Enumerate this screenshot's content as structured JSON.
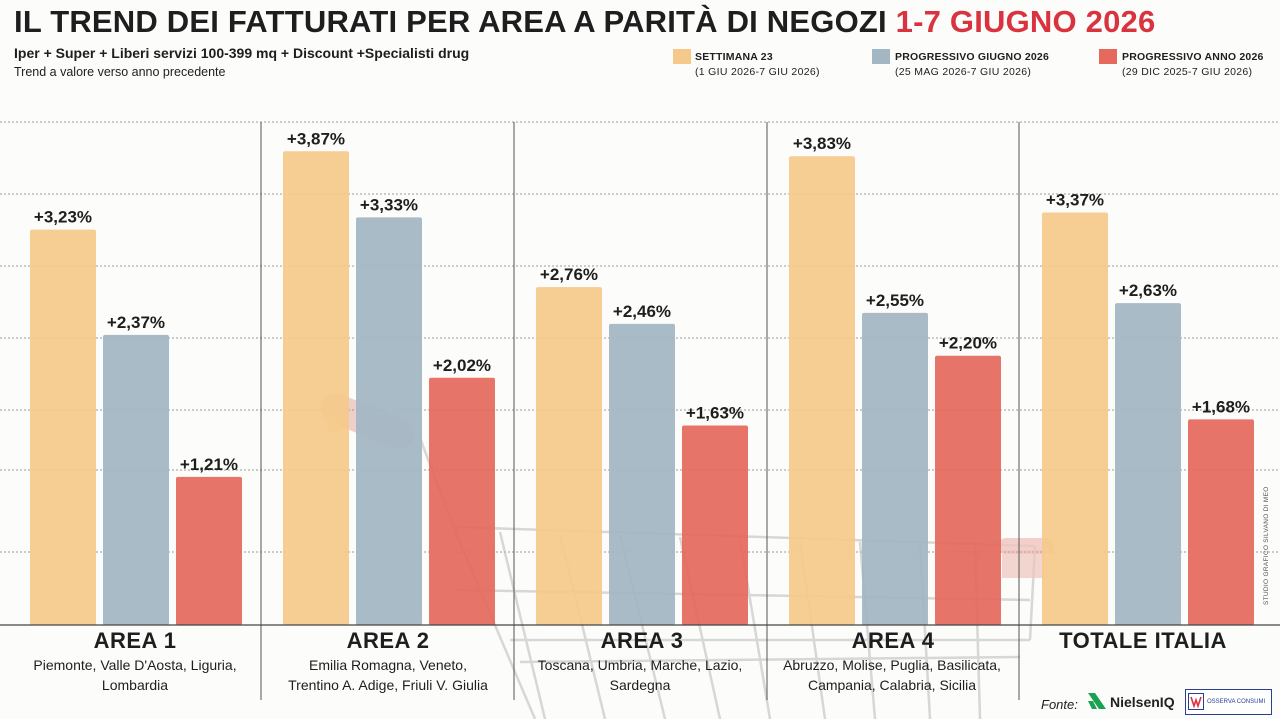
{
  "header": {
    "title": "IL TREND DEI FATTURATI PER AREA A PARITÀ DI NEGOZI",
    "title_highlight": "1-7 GIUGNO 2026",
    "subtitle": "Iper + Super + Liberi servizi 100-399 mq + Discount +Specialisti drug",
    "subtitle2": "Trend a valore verso anno precedente"
  },
  "legend": [
    {
      "name": "SETTIMANA 23",
      "range": "(1 GIU 2026-7 GIU 2026)",
      "color": "#f5c98a"
    },
    {
      "name": "PROGRESSIVO GIUGNO 2026",
      "range": "(25 MAG 2026-7 GIU 2026)",
      "color": "#a3b6c3"
    },
    {
      "name": "PROGRESSIVO ANNO 2026",
      "range": "(29 DIC 2025-7 GIU 2026)",
      "color": "#e5695c"
    }
  ],
  "areas": [
    {
      "title": "AREA 1",
      "regions": [
        "Piemonte, Valle D'Aosta, Liguria,",
        "Lombardia"
      ]
    },
    {
      "title": "AREA 2",
      "regions": [
        "Emilia Romagna, Veneto,",
        "Trentino A. Adige, Friuli V. Giulia"
      ]
    },
    {
      "title": "AREA 3",
      "regions": [
        "Toscana, Umbria, Marche, Lazio,",
        "Sardegna"
      ]
    },
    {
      "title": "AREA 4",
      "regions": [
        "Abruzzo, Molise, Puglia, Basilicata,",
        "Campania, Calabria, Sicilia"
      ]
    },
    {
      "title": "TOTALE ITALIA",
      "regions": []
    }
  ],
  "chart_data": {
    "type": "bar",
    "categories": [
      "AREA 1",
      "AREA 2",
      "AREA 3",
      "AREA 4",
      "TOTALE ITALIA"
    ],
    "series": [
      {
        "name": "SETTIMANA 23",
        "values": [
          3.23,
          3.87,
          2.76,
          3.83,
          3.37
        ],
        "labels": [
          "+3,23%",
          "+3,87%",
          "+2,76%",
          "+3,83%",
          "+3,37%"
        ],
        "color": "#f5c98a"
      },
      {
        "name": "PROGRESSIVO GIUGNO 2026",
        "values": [
          2.37,
          3.33,
          2.46,
          2.55,
          2.63
        ],
        "labels": [
          "+2,37%",
          "+3,33%",
          "+2,46%",
          "+2,55%",
          "+2,63%"
        ],
        "color": "#a3b6c3"
      },
      {
        "name": "PROGRESSIVO ANNO 2026",
        "values": [
          1.21,
          2.02,
          1.63,
          2.2,
          1.68
        ],
        "labels": [
          "+1,21%",
          "+2,02%",
          "+1,63%",
          "+2,20%",
          "+1,68%"
        ],
        "color": "#e5695c"
      }
    ],
    "ylim": [
      0,
      4.2
    ],
    "grid": true,
    "legend_position": "top-right"
  },
  "footer": {
    "source_label": "Fonte:",
    "nielsen": "NielsenIQ",
    "osserva": "OSSERVA CONSUMI",
    "credit": "STUDIO GRAFICO SILVANO DI MEO"
  }
}
